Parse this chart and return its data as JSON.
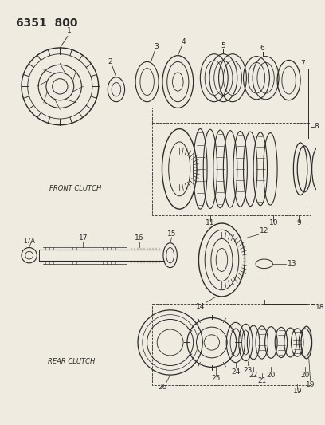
{
  "title": "6351  800",
  "bg_color": "#f0ebe0",
  "line_color": "#2a2a2a",
  "label_color": "#2a2a2a",
  "fig_width": 4.08,
  "fig_height": 5.33,
  "front_clutch_label": "FRONT CLUTCH",
  "rear_clutch_label": "REAR CLUTCH"
}
